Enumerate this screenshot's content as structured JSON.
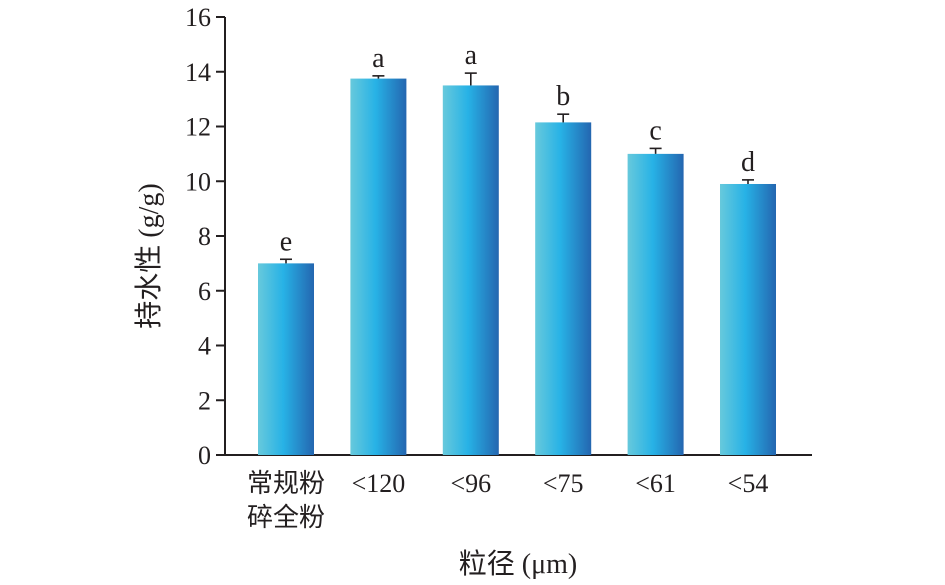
{
  "chart_data": {
    "type": "bar",
    "categories": [
      [
        "常规粉",
        "碎全粉"
      ],
      [
        "<120"
      ],
      [
        "<96"
      ],
      [
        "<75"
      ],
      [
        "<61"
      ],
      [
        "<54"
      ]
    ],
    "values": [
      7.0,
      13.75,
      13.5,
      12.15,
      11.0,
      9.9
    ],
    "errors": [
      0.15,
      0.1,
      0.45,
      0.3,
      0.2,
      0.15
    ],
    "significance_labels": [
      "e",
      "a",
      "a",
      "b",
      "c",
      "d"
    ],
    "xlabel": "粒径 (μm)",
    "ylabel": "持水性 (g/g)",
    "ylim": [
      0,
      16
    ],
    "yticks": [
      0,
      2,
      4,
      6,
      8,
      10,
      12,
      14,
      16
    ],
    "grid": false,
    "legend": "none",
    "colors": {
      "bar_left": "#67c9dc",
      "bar_mid": "#27b2e6",
      "bar_right": "#2466b0",
      "axis": "#231f20"
    }
  }
}
